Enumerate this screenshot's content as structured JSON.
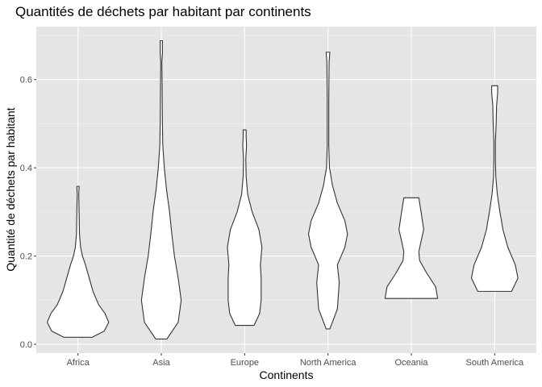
{
  "chart_data": {
    "type": "violin",
    "title": "Quantités de déchets par habitant par continents",
    "xlabel": "Continents",
    "ylabel": "Quantité de déchets par habitant",
    "categories": [
      "Africa",
      "Asia",
      "Europe",
      "North America",
      "Oceania",
      "South America"
    ],
    "ylim": [
      -0.02,
      0.72
    ],
    "yticks": [
      0.0,
      0.2,
      0.4,
      0.6
    ],
    "ytick_labels": [
      "0.0",
      "0.2",
      "0.4",
      "0.6"
    ],
    "grid": true,
    "background": "#e5e5e5",
    "violin_fill": "#ffffff",
    "violin_stroke": "#333333",
    "series": [
      {
        "category": "Africa",
        "min": 0.016,
        "max": 0.358,
        "profile": [
          [
            0.016,
            0.38
          ],
          [
            0.03,
            0.7
          ],
          [
            0.05,
            0.82
          ],
          [
            0.07,
            0.72
          ],
          [
            0.09,
            0.55
          ],
          [
            0.12,
            0.4
          ],
          [
            0.15,
            0.3
          ],
          [
            0.18,
            0.2
          ],
          [
            0.2,
            0.12
          ],
          [
            0.22,
            0.07
          ],
          [
            0.25,
            0.04
          ],
          [
            0.28,
            0.035
          ],
          [
            0.3,
            0.03
          ],
          [
            0.32,
            0.025
          ],
          [
            0.34,
            0.02
          ],
          [
            0.358,
            0.03
          ]
        ]
      },
      {
        "category": "Asia",
        "min": 0.012,
        "max": 0.688,
        "profile": [
          [
            0.012,
            0.15
          ],
          [
            0.05,
            0.45
          ],
          [
            0.1,
            0.53
          ],
          [
            0.15,
            0.45
          ],
          [
            0.2,
            0.35
          ],
          [
            0.25,
            0.28
          ],
          [
            0.3,
            0.22
          ],
          [
            0.35,
            0.14
          ],
          [
            0.4,
            0.08
          ],
          [
            0.45,
            0.04
          ],
          [
            0.5,
            0.03
          ],
          [
            0.55,
            0.025
          ],
          [
            0.6,
            0.02
          ],
          [
            0.64,
            0.015
          ],
          [
            0.66,
            0.03
          ],
          [
            0.688,
            0.03
          ]
        ]
      },
      {
        "category": "Europe",
        "min": 0.043,
        "max": 0.486,
        "profile": [
          [
            0.043,
            0.25
          ],
          [
            0.07,
            0.4
          ],
          [
            0.1,
            0.44
          ],
          [
            0.15,
            0.44
          ],
          [
            0.18,
            0.42
          ],
          [
            0.22,
            0.46
          ],
          [
            0.26,
            0.38
          ],
          [
            0.3,
            0.2
          ],
          [
            0.34,
            0.08
          ],
          [
            0.38,
            0.04
          ],
          [
            0.42,
            0.03
          ],
          [
            0.45,
            0.05
          ],
          [
            0.47,
            0.04
          ],
          [
            0.486,
            0.04
          ]
        ]
      },
      {
        "category": "North America",
        "min": 0.035,
        "max": 0.662,
        "profile": [
          [
            0.035,
            0.05
          ],
          [
            0.08,
            0.25
          ],
          [
            0.14,
            0.3
          ],
          [
            0.18,
            0.25
          ],
          [
            0.22,
            0.45
          ],
          [
            0.25,
            0.52
          ],
          [
            0.28,
            0.45
          ],
          [
            0.32,
            0.25
          ],
          [
            0.36,
            0.12
          ],
          [
            0.4,
            0.04
          ],
          [
            0.45,
            0.02
          ],
          [
            0.5,
            0.02
          ],
          [
            0.55,
            0.02
          ],
          [
            0.6,
            0.025
          ],
          [
            0.64,
            0.03
          ],
          [
            0.662,
            0.05
          ]
        ]
      },
      {
        "category": "Oceania",
        "min": 0.104,
        "max": 0.332,
        "profile": [
          [
            0.104,
            0.7
          ],
          [
            0.13,
            0.65
          ],
          [
            0.16,
            0.42
          ],
          [
            0.19,
            0.22
          ],
          [
            0.21,
            0.2
          ],
          [
            0.23,
            0.25
          ],
          [
            0.26,
            0.33
          ],
          [
            0.3,
            0.26
          ],
          [
            0.332,
            0.2
          ]
        ]
      },
      {
        "category": "South America",
        "min": 0.12,
        "max": 0.586,
        "profile": [
          [
            0.12,
            0.45
          ],
          [
            0.15,
            0.62
          ],
          [
            0.18,
            0.55
          ],
          [
            0.22,
            0.35
          ],
          [
            0.26,
            0.22
          ],
          [
            0.3,
            0.14
          ],
          [
            0.34,
            0.07
          ],
          [
            0.38,
            0.03
          ],
          [
            0.42,
            0.02
          ],
          [
            0.46,
            0.02
          ],
          [
            0.5,
            0.04
          ],
          [
            0.54,
            0.05
          ],
          [
            0.57,
            0.08
          ],
          [
            0.586,
            0.08
          ]
        ]
      }
    ]
  }
}
